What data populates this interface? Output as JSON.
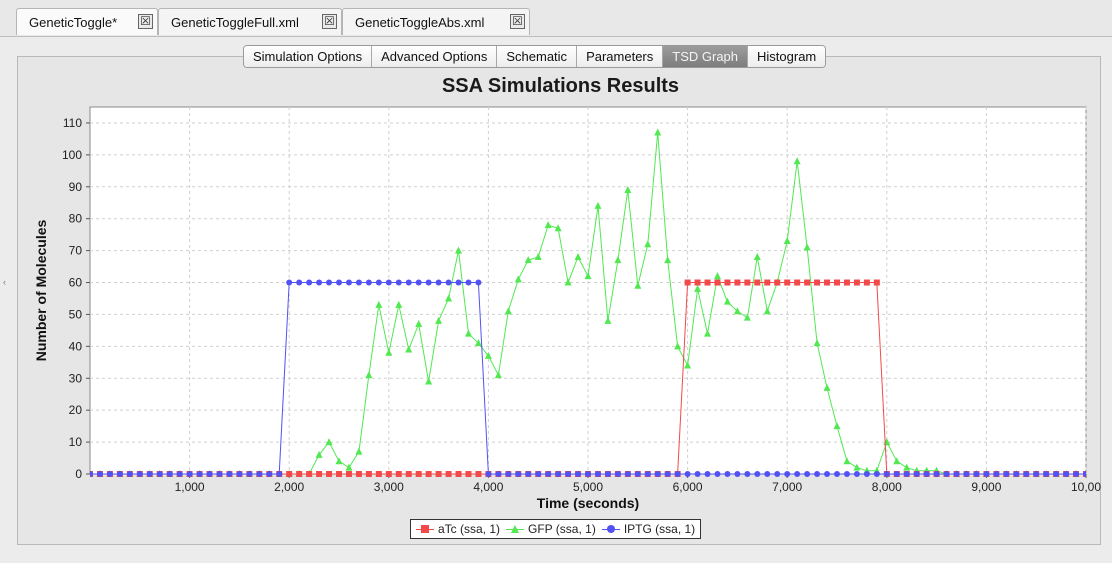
{
  "file_tabs": [
    {
      "label": "GeneticToggle*",
      "active": true
    },
    {
      "label": "GeneticToggleFull.xml",
      "active": false
    },
    {
      "label": "GeneticToggleAbs.xml",
      "active": false
    }
  ],
  "sub_tabs": [
    {
      "label": "Simulation Options",
      "selected": false
    },
    {
      "label": "Advanced Options",
      "selected": false
    },
    {
      "label": "Schematic",
      "selected": false
    },
    {
      "label": "Parameters",
      "selected": false
    },
    {
      "label": "TSD Graph",
      "selected": true
    },
    {
      "label": "Histogram",
      "selected": false
    }
  ],
  "close_icon_glyph": "☒",
  "chart_data": {
    "type": "line",
    "title": "SSA Simulations Results",
    "xlabel": "Time (seconds)",
    "ylabel": "Number of Molecules",
    "xlim": [
      0,
      10000
    ],
    "ylim": [
      0,
      115
    ],
    "x_ticks": [
      "1,000",
      "2,000",
      "3,000",
      "4,000",
      "5,000",
      "6,000",
      "7,000",
      "8,000",
      "9,000",
      "10,00"
    ],
    "x_tick_values": [
      1000,
      2000,
      3000,
      4000,
      5000,
      6000,
      7000,
      8000,
      9000,
      10000
    ],
    "y_ticks": [
      0,
      10,
      20,
      30,
      40,
      50,
      60,
      70,
      80,
      90,
      100,
      110
    ],
    "grid": true,
    "legend_position": "bottom",
    "series": [
      {
        "name": "aTc (ssa, 1)",
        "color": "#f24a4a",
        "marker": "square",
        "x": [
          0,
          100,
          200,
          300,
          400,
          500,
          600,
          700,
          800,
          900,
          1000,
          1100,
          1200,
          1300,
          1400,
          1500,
          1600,
          1700,
          1800,
          1900,
          2000,
          2100,
          2200,
          2300,
          2400,
          2500,
          2600,
          2700,
          2800,
          2900,
          3000,
          3100,
          3200,
          3300,
          3400,
          3500,
          3600,
          3700,
          3800,
          3900,
          4000,
          4100,
          4200,
          4300,
          4400,
          4500,
          4600,
          4700,
          4800,
          4900,
          5000,
          5100,
          5200,
          5300,
          5400,
          5500,
          5600,
          5700,
          5800,
          5900,
          6000,
          6100,
          6200,
          6300,
          6400,
          6500,
          6600,
          6700,
          6800,
          6900,
          7000,
          7100,
          7200,
          7300,
          7400,
          7500,
          7600,
          7700,
          7800,
          7900,
          8000,
          8100,
          8200,
          8300,
          8400,
          8500,
          8600,
          8700,
          8800,
          8900,
          9000,
          9100,
          9200,
          9300,
          9400,
          9500,
          9600,
          9700,
          9800,
          9900,
          10000
        ],
        "y": [
          0,
          0,
          0,
          0,
          0,
          0,
          0,
          0,
          0,
          0,
          0,
          0,
          0,
          0,
          0,
          0,
          0,
          0,
          0,
          0,
          0,
          0,
          0,
          0,
          0,
          0,
          0,
          0,
          0,
          0,
          0,
          0,
          0,
          0,
          0,
          0,
          0,
          0,
          0,
          0,
          0,
          0,
          0,
          0,
          0,
          0,
          0,
          0,
          0,
          0,
          0,
          0,
          0,
          0,
          0,
          0,
          0,
          0,
          0,
          0,
          60,
          60,
          60,
          60,
          60,
          60,
          60,
          60,
          60,
          60,
          60,
          60,
          60,
          60,
          60,
          60,
          60,
          60,
          60,
          60,
          0,
          0,
          0,
          0,
          0,
          0,
          0,
          0,
          0,
          0,
          0,
          0,
          0,
          0,
          0,
          0,
          0,
          0,
          0,
          0,
          0
        ]
      },
      {
        "name": "GFP (ssa, 1)",
        "color": "#52e852",
        "marker": "triangle",
        "x": [
          0,
          100,
          200,
          300,
          400,
          500,
          600,
          700,
          800,
          900,
          1000,
          1100,
          1200,
          1300,
          1400,
          1500,
          1600,
          1700,
          1800,
          1900,
          2000,
          2100,
          2200,
          2300,
          2400,
          2500,
          2600,
          2700,
          2800,
          2900,
          3000,
          3100,
          3200,
          3300,
          3400,
          3500,
          3600,
          3700,
          3800,
          3900,
          4000,
          4100,
          4200,
          4300,
          4400,
          4500,
          4600,
          4700,
          4800,
          4900,
          5000,
          5100,
          5200,
          5300,
          5400,
          5500,
          5600,
          5700,
          5800,
          5900,
          6000,
          6100,
          6200,
          6300,
          6400,
          6500,
          6600,
          6700,
          6800,
          6900,
          7000,
          7100,
          7200,
          7300,
          7400,
          7500,
          7600,
          7700,
          7800,
          7900,
          8000,
          8100,
          8200,
          8300,
          8400,
          8500,
          8600,
          8700,
          8800,
          8900,
          9000,
          9100,
          9200,
          9300,
          9400,
          9500,
          9600,
          9700,
          9800,
          9900,
          10000
        ],
        "y": [
          0,
          0,
          0,
          0,
          0,
          0,
          0,
          0,
          0,
          0,
          0,
          0,
          0,
          0,
          0,
          0,
          0,
          0,
          0,
          0,
          0,
          0,
          0,
          6,
          10,
          4,
          2,
          7,
          31,
          53,
          38,
          53,
          39,
          47,
          29,
          48,
          55,
          70,
          44,
          41,
          37,
          31,
          51,
          61,
          67,
          68,
          78,
          77,
          60,
          68,
          62,
          84,
          48,
          67,
          89,
          59,
          72,
          107,
          67,
          40,
          34,
          58,
          44,
          62,
          54,
          51,
          49,
          68,
          51,
          60,
          73,
          98,
          71,
          41,
          27,
          15,
          4,
          2,
          1,
          1,
          10,
          4,
          2,
          1,
          1,
          1,
          0,
          0,
          0,
          0,
          0,
          0,
          0,
          0,
          0,
          0,
          0,
          0,
          0,
          0,
          0
        ]
      },
      {
        "name": "IPTG (ssa, 1)",
        "color": "#5252f2",
        "marker": "circle",
        "x": [
          0,
          100,
          200,
          300,
          400,
          500,
          600,
          700,
          800,
          900,
          1000,
          1100,
          1200,
          1300,
          1400,
          1500,
          1600,
          1700,
          1800,
          1900,
          2000,
          2100,
          2200,
          2300,
          2400,
          2500,
          2600,
          2700,
          2800,
          2900,
          3000,
          3100,
          3200,
          3300,
          3400,
          3500,
          3600,
          3700,
          3800,
          3900,
          4000,
          4100,
          4200,
          4300,
          4400,
          4500,
          4600,
          4700,
          4800,
          4900,
          5000,
          5100,
          5200,
          5300,
          5400,
          5500,
          5600,
          5700,
          5800,
          5900,
          6000,
          6100,
          6200,
          6300,
          6400,
          6500,
          6600,
          6700,
          6800,
          6900,
          7000,
          7100,
          7200,
          7300,
          7400,
          7500,
          7600,
          7700,
          7800,
          7900,
          8000,
          8100,
          8200,
          8300,
          8400,
          8500,
          8600,
          8700,
          8800,
          8900,
          9000,
          9100,
          9200,
          9300,
          9400,
          9500,
          9600,
          9700,
          9800,
          9900,
          10000
        ],
        "y": [
          0,
          0,
          0,
          0,
          0,
          0,
          0,
          0,
          0,
          0,
          0,
          0,
          0,
          0,
          0,
          0,
          0,
          0,
          0,
          0,
          60,
          60,
          60,
          60,
          60,
          60,
          60,
          60,
          60,
          60,
          60,
          60,
          60,
          60,
          60,
          60,
          60,
          60,
          60,
          60,
          0,
          0,
          0,
          0,
          0,
          0,
          0,
          0,
          0,
          0,
          0,
          0,
          0,
          0,
          0,
          0,
          0,
          0,
          0,
          0,
          0,
          0,
          0,
          0,
          0,
          0,
          0,
          0,
          0,
          0,
          0,
          0,
          0,
          0,
          0,
          0,
          0,
          0,
          0,
          0,
          0,
          0,
          0,
          0,
          0,
          0,
          0,
          0,
          0,
          0,
          0,
          0,
          0,
          0,
          0,
          0,
          0,
          0,
          0,
          0,
          0
        ]
      }
    ]
  }
}
